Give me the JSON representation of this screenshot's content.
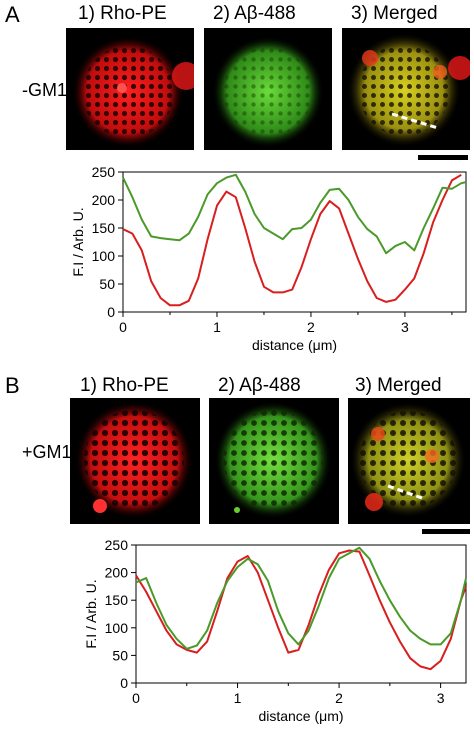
{
  "panels": [
    {
      "letter": "A",
      "condition": "-GM1",
      "columns": [
        "1) Rho-PE",
        "2) Aβ-488",
        "3) Merged"
      ],
      "chart_data": {
        "type": "line",
        "xlabel": "distance (μm)",
        "ylabel": "F.I / Arb. U.",
        "xlim": [
          0,
          3.65
        ],
        "ylim": [
          0,
          250
        ],
        "xticks": [
          "0",
          "1",
          "2",
          "3"
        ],
        "yticks": [
          "0",
          "50",
          "100",
          "150",
          "200",
          "250"
        ],
        "series": [
          {
            "color": "#d81e1e",
            "x": [
              0,
              0.1,
              0.2,
              0.3,
              0.4,
              0.5,
              0.6,
              0.7,
              0.8,
              0.9,
              1.0,
              1.1,
              1.2,
              1.3,
              1.4,
              1.5,
              1.6,
              1.7,
              1.8,
              1.9,
              2.0,
              2.1,
              2.2,
              2.3,
              2.4,
              2.5,
              2.6,
              2.7,
              2.8,
              2.9,
              3.0,
              3.1,
              3.2,
              3.3,
              3.4,
              3.5,
              3.6
            ],
            "values": [
              148,
              140,
              110,
              55,
              25,
              12,
              12,
              20,
              60,
              130,
              190,
              215,
              205,
              150,
              90,
              45,
              35,
              35,
              40,
              80,
              130,
              175,
              198,
              185,
              140,
              95,
              55,
              25,
              18,
              22,
              40,
              60,
              105,
              160,
              200,
              235,
              245
            ]
          },
          {
            "color": "#4a9a2a",
            "x": [
              0,
              0.1,
              0.2,
              0.3,
              0.4,
              0.5,
              0.6,
              0.7,
              0.8,
              0.9,
              1.0,
              1.1,
              1.2,
              1.3,
              1.4,
              1.5,
              1.6,
              1.7,
              1.8,
              1.9,
              2.0,
              2.1,
              2.2,
              2.3,
              2.4,
              2.5,
              2.6,
              2.7,
              2.8,
              2.9,
              3.0,
              3.1,
              3.2,
              3.3,
              3.4,
              3.5,
              3.6,
              3.65
            ],
            "values": [
              240,
              205,
              165,
              135,
              132,
              130,
              128,
              140,
              170,
              210,
              230,
              240,
              245,
              215,
              175,
              150,
              140,
              130,
              148,
              150,
              165,
              195,
              218,
              220,
              200,
              170,
              148,
              135,
              105,
              118,
              125,
              110,
              150,
              185,
              222,
              220,
              230,
              232
            ]
          }
        ]
      }
    },
    {
      "letter": "B",
      "condition": "+GM1",
      "columns": [
        "1) Rho-PE",
        "2) Aβ-488",
        "3) Merged"
      ],
      "chart_data": {
        "type": "line",
        "xlabel": "distance (μm)",
        "ylabel": "F.I / Arb. U.",
        "xlim": [
          0,
          3.25
        ],
        "ylim": [
          0,
          250
        ],
        "xticks": [
          "0",
          "1",
          "2",
          "3"
        ],
        "yticks": [
          "0",
          "50",
          "100",
          "150",
          "200",
          "250"
        ],
        "series": [
          {
            "color": "#d81e1e",
            "x": [
              0,
              0.1,
              0.2,
              0.3,
              0.4,
              0.5,
              0.6,
              0.7,
              0.8,
              0.9,
              1.0,
              1.1,
              1.2,
              1.3,
              1.4,
              1.5,
              1.6,
              1.7,
              1.8,
              1.9,
              2.0,
              2.1,
              2.2,
              2.3,
              2.4,
              2.5,
              2.6,
              2.7,
              2.8,
              2.9,
              3.0,
              3.1,
              3.2,
              3.25
            ],
            "values": [
              195,
              165,
              130,
              95,
              70,
              60,
              55,
              75,
              130,
              190,
              220,
              230,
              200,
              150,
              100,
              55,
              60,
              105,
              160,
              205,
              235,
              240,
              238,
              195,
              150,
              110,
              75,
              45,
              30,
              25,
              40,
              80,
              150,
              175
            ]
          },
          {
            "color": "#4a9a2a",
            "x": [
              0,
              0.1,
              0.2,
              0.3,
              0.4,
              0.5,
              0.6,
              0.7,
              0.8,
              0.9,
              1.0,
              1.1,
              1.2,
              1.3,
              1.4,
              1.5,
              1.6,
              1.7,
              1.8,
              1.9,
              2.0,
              2.1,
              2.2,
              2.3,
              2.4,
              2.5,
              2.6,
              2.7,
              2.8,
              2.9,
              3.0,
              3.1,
              3.2,
              3.25
            ],
            "values": [
              182,
              190,
              145,
              105,
              80,
              62,
              68,
              95,
              145,
              185,
              210,
              225,
              215,
              185,
              130,
              90,
              70,
              95,
              140,
              190,
              225,
              235,
              245,
              225,
              185,
              150,
              120,
              95,
              80,
              70,
              70,
              90,
              150,
              190
            ]
          }
        ]
      }
    }
  ]
}
